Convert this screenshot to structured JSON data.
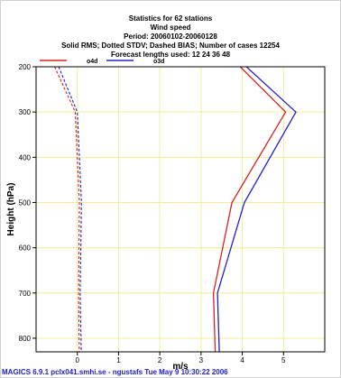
{
  "header": {
    "line1": "Statistics for  62 stations",
    "line2": "Wind speed",
    "line3": "Period: 20060102-20060128",
    "line4": "Solid RMS; Dotted STDV; Dashed BIAS; Number of cases   12254",
    "line5": "Forecast lengths used: 12 24 36 48"
  },
  "footer": {
    "text": "MAGICS 6.9.1 pclx041.smhi.se - ngustafs Tue May  9 10:30:22 2006"
  },
  "colors": {
    "o4d": "#e02020",
    "o3d": "#2020d0",
    "grid": "#f0ec9a",
    "plot_border": "#000000"
  },
  "chart_data": {
    "type": "line",
    "title": "Statistics for  62 stations",
    "xlabel": "m/s",
    "ylabel": "Height (hPa)",
    "xlim": [
      -1,
      6
    ],
    "ylim": [
      830,
      200
    ],
    "y_inverted": true,
    "grid": true,
    "legend_position": "top-left",
    "x_ticks": [
      0,
      1,
      2,
      3,
      4,
      5
    ],
    "x_tick_labels": [
      "0",
      "1",
      "2",
      "3",
      "4",
      "5"
    ],
    "y_ticks": [
      200,
      300,
      400,
      500,
      600,
      700,
      800
    ],
    "y_tick_labels": [
      "200",
      "300",
      "400",
      "500",
      "600",
      "700",
      "800"
    ],
    "series": [
      {
        "name": "o4d",
        "style": "solid",
        "label": "RMS",
        "points": [
          [
            3.95,
            200
          ],
          [
            5.05,
            300
          ],
          [
            3.75,
            500
          ],
          [
            3.3,
            700
          ],
          [
            3.35,
            850
          ]
        ]
      },
      {
        "name": "o3d",
        "style": "solid",
        "label": "RMS",
        "points": [
          [
            4.1,
            200
          ],
          [
            5.3,
            300
          ],
          [
            4.05,
            500
          ],
          [
            3.4,
            700
          ],
          [
            3.45,
            850
          ]
        ]
      },
      {
        "name": "o4d",
        "style": "dashed",
        "label": "BIAS",
        "points": [
          [
            -0.55,
            200
          ],
          [
            -0.05,
            300
          ],
          [
            0.05,
            500
          ],
          [
            0.03,
            700
          ],
          [
            0.05,
            850
          ]
        ]
      },
      {
        "name": "o3d",
        "style": "dashed",
        "label": "BIAS",
        "points": [
          [
            -0.45,
            200
          ],
          [
            0.0,
            300
          ],
          [
            0.1,
            500
          ],
          [
            0.07,
            700
          ],
          [
            0.1,
            850
          ]
        ]
      }
    ]
  }
}
